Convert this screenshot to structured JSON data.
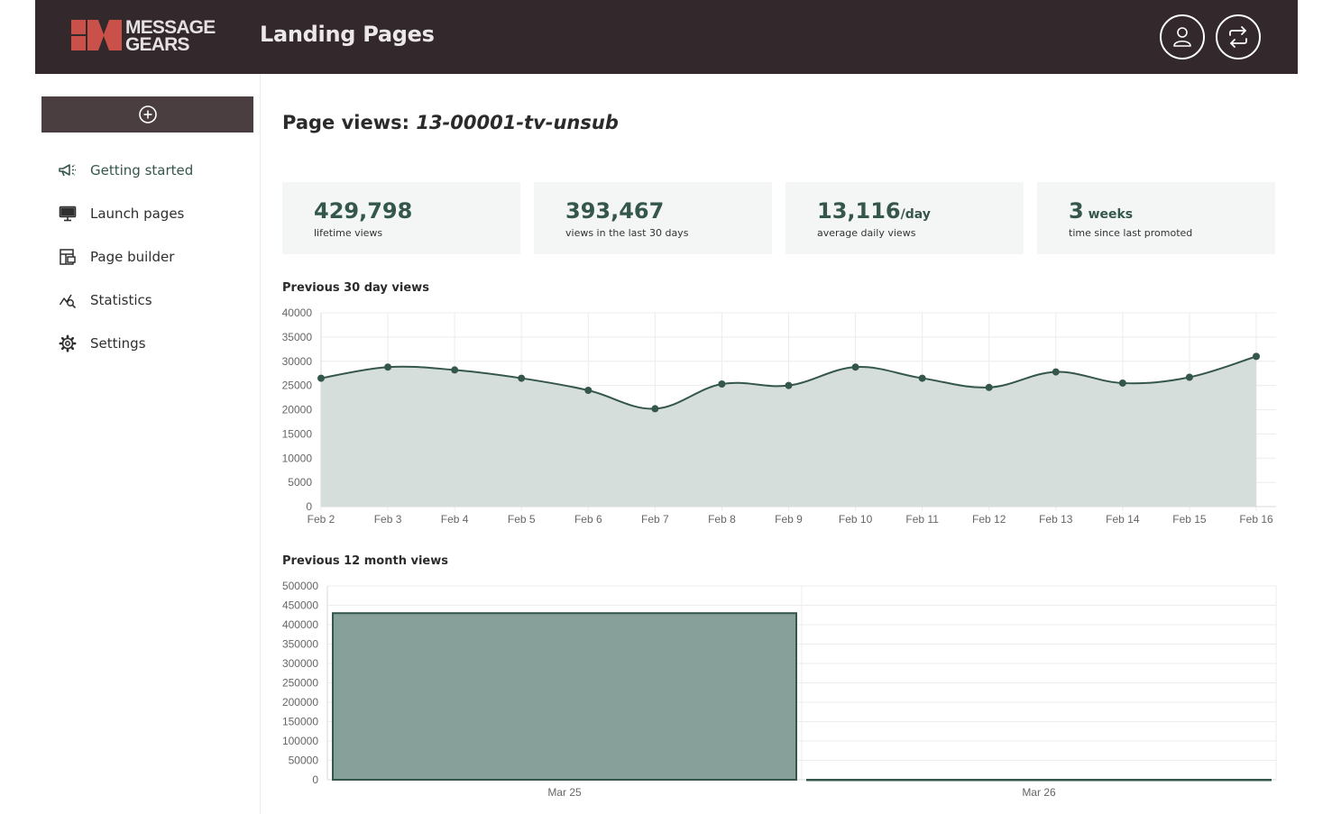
{
  "header": {
    "logo_text_line1": "MESSAGE",
    "logo_text_line2": "GEARS",
    "app_title": "Landing Pages",
    "user_button": "user-icon",
    "switch_button": "switch-icon"
  },
  "sidebar": {
    "create_button": "plus-circle-icon",
    "items": [
      {
        "label": "Getting started",
        "icon": "megaphone-icon",
        "active": true
      },
      {
        "label": "Launch pages",
        "icon": "monitor-icon",
        "active": false
      },
      {
        "label": "Page builder",
        "icon": "layout-icon",
        "active": false
      },
      {
        "label": "Statistics",
        "icon": "chart-search-icon",
        "active": false
      },
      {
        "label": "Settings",
        "icon": "gear-icon",
        "active": false
      }
    ]
  },
  "main": {
    "title_prefix": "Page views: ",
    "page_id": "13-00001-tv-unsub",
    "stats": [
      {
        "value": "429,798",
        "unit": "",
        "label": "lifetime views"
      },
      {
        "value": "393,467",
        "unit": "",
        "label": "views in the last 30 days"
      },
      {
        "value": "13,116",
        "unit": "/day",
        "label": "average daily views"
      },
      {
        "value": "3",
        "unit": " weeks",
        "label": "time since last promoted"
      }
    ],
    "colors": {
      "accent": "#35574b",
      "header_bg": "#33282b",
      "area_fill": "#d5dedb",
      "bar_fill": "#87a099"
    }
  },
  "chart_data": [
    {
      "type": "area",
      "title": "Previous 30 day views",
      "x": [
        "Feb 2",
        "Feb 3",
        "Feb 4",
        "Feb 5",
        "Feb 6",
        "Feb 7",
        "Feb 8",
        "Feb 9",
        "Feb 10",
        "Feb 11",
        "Feb 12",
        "Feb 13",
        "Feb 14",
        "Feb 15",
        "Feb 16"
      ],
      "values": [
        26500,
        28800,
        28200,
        26500,
        24000,
        20200,
        25300,
        25000,
        28800,
        26500,
        24600,
        27800,
        25500,
        26700,
        31000
      ],
      "ylim": [
        0,
        40000
      ],
      "yticks": [
        0,
        5000,
        10000,
        15000,
        20000,
        25000,
        30000,
        35000,
        40000
      ],
      "grid": true,
      "legend": "none"
    },
    {
      "type": "bar",
      "title": "Previous 12 month views",
      "categories": [
        "Mar 25",
        "Mar 26"
      ],
      "values": [
        429798,
        0
      ],
      "ylim": [
        0,
        500000
      ],
      "yticks": [
        0,
        50000,
        100000,
        150000,
        200000,
        250000,
        300000,
        350000,
        400000,
        450000,
        500000
      ],
      "grid": true,
      "legend": "none"
    }
  ]
}
